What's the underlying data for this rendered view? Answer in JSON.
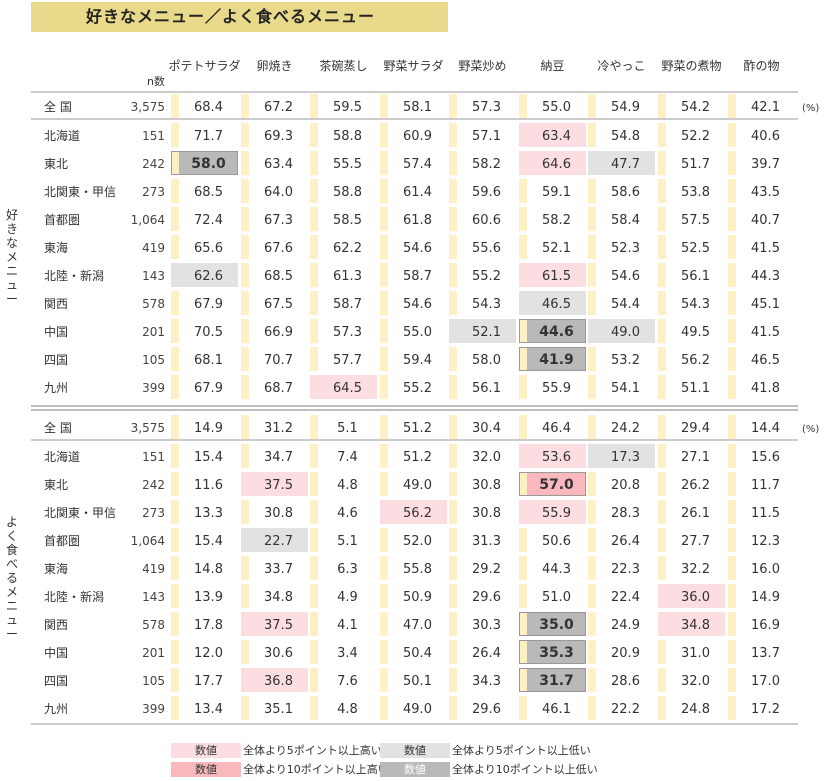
{
  "title": "好きなメニュー／よく食べるメニュー",
  "chart_data": {
    "type": "table",
    "unit": "(%)",
    "n_header": "n数",
    "columns": [
      "ポテトサラダ",
      "卵焼き",
      "茶碗蒸し",
      "野菜サラダ",
      "野菜炒め",
      "納豆",
      "冷やっこ",
      "野菜の煮物",
      "酢の物"
    ],
    "sections": [
      {
        "label": "好きなメニュー",
        "total": {
          "region": "全 国",
          "n": "3,575",
          "values": [
            68.4,
            67.2,
            59.5,
            58.1,
            57.3,
            55.0,
            54.9,
            54.2,
            42.1
          ]
        },
        "rows": [
          {
            "region": "北海道",
            "n": "151",
            "values": [
              71.7,
              69.3,
              58.8,
              60.9,
              57.1,
              63.4,
              54.8,
              52.2,
              40.6
            ]
          },
          {
            "region": "東北",
            "n": "242",
            "values": [
              58.0,
              63.4,
              55.5,
              57.4,
              58.2,
              64.6,
              47.7,
              51.7,
              39.7
            ]
          },
          {
            "region": "北関東・甲信",
            "n": "273",
            "values": [
              68.5,
              64.0,
              58.8,
              61.4,
              59.6,
              59.1,
              58.6,
              53.8,
              43.5
            ]
          },
          {
            "region": "首都圏",
            "n": "1,064",
            "values": [
              72.4,
              67.3,
              58.5,
              61.8,
              60.6,
              58.2,
              58.4,
              57.5,
              40.7
            ]
          },
          {
            "region": "東海",
            "n": "419",
            "values": [
              65.6,
              67.6,
              62.2,
              54.6,
              55.6,
              52.1,
              52.3,
              52.5,
              41.5
            ]
          },
          {
            "region": "北陸・新潟",
            "n": "143",
            "values": [
              62.6,
              68.5,
              61.3,
              58.7,
              55.2,
              61.5,
              54.6,
              56.1,
              44.3
            ]
          },
          {
            "region": "関西",
            "n": "578",
            "values": [
              67.9,
              67.5,
              58.7,
              54.6,
              54.3,
              46.5,
              54.4,
              54.3,
              45.1
            ]
          },
          {
            "region": "中国",
            "n": "201",
            "values": [
              70.5,
              66.9,
              57.3,
              55.0,
              52.1,
              44.6,
              49.0,
              49.5,
              41.5
            ]
          },
          {
            "region": "四国",
            "n": "105",
            "values": [
              68.1,
              70.7,
              57.7,
              59.4,
              58.0,
              41.9,
              53.2,
              56.2,
              46.5
            ]
          },
          {
            "region": "九州",
            "n": "399",
            "values": [
              67.9,
              68.7,
              64.5,
              55.2,
              56.1,
              55.9,
              54.1,
              51.1,
              41.8
            ]
          }
        ]
      },
      {
        "label": "よく食べるメニュー",
        "total": {
          "region": "全 国",
          "n": "3,575",
          "values": [
            14.9,
            31.2,
            5.1,
            51.2,
            30.4,
            46.4,
            24.2,
            29.4,
            14.4
          ]
        },
        "rows": [
          {
            "region": "北海道",
            "n": "151",
            "values": [
              15.4,
              34.7,
              7.4,
              51.2,
              32.0,
              53.6,
              17.3,
              27.1,
              15.6
            ]
          },
          {
            "region": "東北",
            "n": "242",
            "values": [
              11.6,
              37.5,
              4.8,
              49.0,
              30.8,
              57.0,
              20.8,
              26.2,
              11.7
            ]
          },
          {
            "region": "北関東・甲信",
            "n": "273",
            "values": [
              13.3,
              30.8,
              4.6,
              56.2,
              30.8,
              55.9,
              28.3,
              26.1,
              11.5
            ]
          },
          {
            "region": "首都圏",
            "n": "1,064",
            "values": [
              15.4,
              22.7,
              5.1,
              52.0,
              31.3,
              50.6,
              26.4,
              27.7,
              12.3
            ]
          },
          {
            "region": "東海",
            "n": "419",
            "values": [
              14.8,
              33.7,
              6.3,
              55.8,
              29.2,
              44.3,
              22.3,
              32.2,
              16.0
            ]
          },
          {
            "region": "北陸・新潟",
            "n": "143",
            "values": [
              13.9,
              34.8,
              4.9,
              50.9,
              29.6,
              51.0,
              22.4,
              36.0,
              14.9
            ]
          },
          {
            "region": "関西",
            "n": "578",
            "values": [
              17.8,
              37.5,
              4.1,
              47.0,
              30.3,
              35.0,
              24.9,
              34.8,
              16.9
            ]
          },
          {
            "region": "中国",
            "n": "201",
            "values": [
              12.0,
              30.6,
              3.4,
              50.4,
              26.4,
              35.3,
              20.9,
              31.0,
              13.7
            ]
          },
          {
            "region": "四国",
            "n": "105",
            "values": [
              17.7,
              36.8,
              7.6,
              50.1,
              34.3,
              31.7,
              28.6,
              32.0,
              17.0
            ]
          },
          {
            "region": "九州",
            "n": "399",
            "values": [
              13.4,
              35.1,
              4.8,
              49.0,
              29.6,
              46.1,
              22.2,
              24.8,
              17.2
            ]
          }
        ]
      }
    ],
    "colors": {
      "bar": "#fdf0c4",
      "high5": "#fcdde1",
      "high10": "#f9b8bd",
      "low5": "#e2e2e2",
      "low10": "#b9b9b9"
    },
    "legend": [
      {
        "box": "数値",
        "text": "全体より5ポイント以上高い",
        "style": "high5"
      },
      {
        "box": "数値",
        "text": "全体より10ポイント以上高い",
        "style": "high10"
      },
      {
        "box": "数値",
        "text": "全体より5ポイント以上低い",
        "style": "low5"
      },
      {
        "box": "数値",
        "text": "全体より10ポイント以上低い",
        "style": "low10"
      }
    ]
  }
}
